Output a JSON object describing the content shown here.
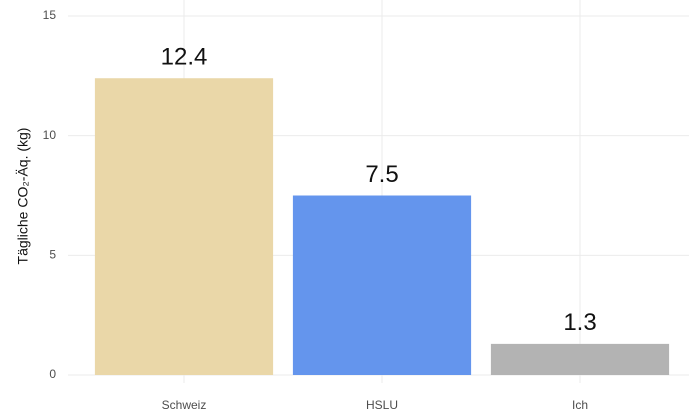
{
  "chart_data": {
    "type": "bar",
    "ylabel": "Tägliche CO₂-Äq. (kg)",
    "categories": [
      "Schweiz",
      "HSLU",
      "Ich"
    ],
    "values": [
      12.4,
      7.5,
      1.3
    ],
    "colors": [
      "#ead7a8",
      "#6495ed",
      "#b3b3b3"
    ],
    "ylim": [
      0,
      15
    ],
    "yticks": [
      0,
      5,
      10,
      15
    ],
    "grid": true
  }
}
